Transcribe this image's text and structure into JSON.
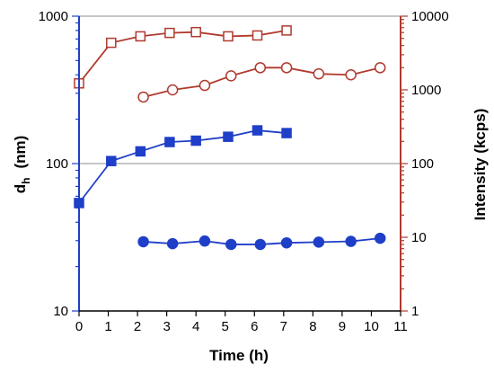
{
  "chart_data": {
    "type": "scatter",
    "x_axis": {
      "label": "Time (h)",
      "range": [
        0,
        11
      ],
      "ticks": [
        "0",
        "1",
        "2",
        "3",
        "4",
        "5",
        "6",
        "7",
        "8",
        "9",
        "10",
        "11"
      ]
    },
    "y_left": {
      "label_main": "d",
      "label_sub": "h",
      "label_unit": "(nm)",
      "scale": "log",
      "range": [
        10,
        1000
      ],
      "ticks": [
        "10",
        "100",
        "1000"
      ],
      "color": "#1f3fc8"
    },
    "y_right": {
      "label": "Intensity (kcps)",
      "scale": "log",
      "range": [
        1,
        10000
      ],
      "ticks": [
        "1",
        "10",
        "100",
        "1000",
        "10000"
      ],
      "color": "#b03a2e"
    },
    "gridlines_y_left": [
      100,
      1000
    ],
    "series": [
      {
        "axis": "left",
        "marker": "square",
        "filled": true,
        "color": "#1f3fc8",
        "x": [
          0,
          1.1,
          2.1,
          3.1,
          4.0,
          5.1,
          6.1,
          7.1
        ],
        "y": [
          54,
          104,
          121,
          140,
          143,
          152,
          168,
          161
        ]
      },
      {
        "axis": "right",
        "marker": "circle",
        "filled": true,
        "color": "#1f3fc8",
        "x": [
          2.2,
          3.2,
          4.3,
          5.2,
          6.2,
          7.1,
          8.2,
          9.3,
          10.3
        ],
        "y": [
          8.7,
          8.2,
          8.9,
          8.0,
          8.0,
          8.4,
          8.6,
          8.8,
          9.7
        ]
      },
      {
        "axis": "left",
        "marker": "square",
        "filled": false,
        "color": "#b03a2e",
        "x": [
          0,
          1.1,
          2.1,
          3.1,
          4.0,
          5.1,
          6.1,
          7.1
        ],
        "y": [
          350,
          660,
          730,
          770,
          780,
          730,
          740,
          800
        ]
      },
      {
        "axis": "right",
        "marker": "circle",
        "filled": false,
        "color": "#b03a2e",
        "x": [
          2.2,
          3.2,
          4.3,
          5.2,
          6.2,
          7.1,
          8.2,
          9.3,
          10.3
        ],
        "y": [
          800,
          1000,
          1150,
          1550,
          2000,
          2000,
          1650,
          1600,
          2000
        ]
      }
    ]
  }
}
